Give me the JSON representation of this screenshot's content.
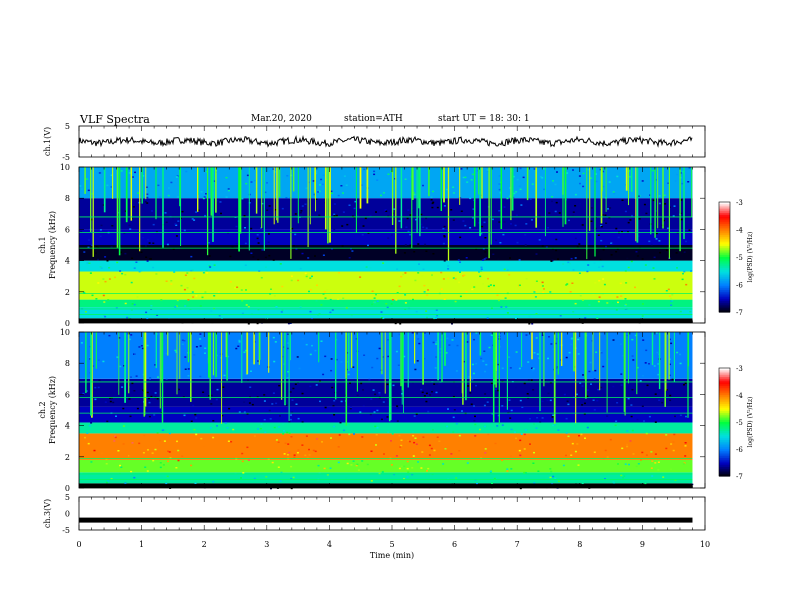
{
  "header": {
    "title": "VLF  Spectra",
    "date": "Mar.20, 2020",
    "station": "station=ATH",
    "start": "start  UT  =    18: 30: 1"
  },
  "chart_data": [
    {
      "type": "line",
      "panel": "ch1-waveform",
      "ylabel": "ch.1(V)",
      "ylim": [
        -5,
        5
      ],
      "yticks": [
        "5",
        "-5"
      ],
      "xlim": [
        0,
        10
      ],
      "note_series_level": 0
    },
    {
      "type": "heatmap",
      "panel": "ch1-spectrogram",
      "ylabel_top": "ch.1",
      "ylabel": "Frequency  (kHz)",
      "ylim": [
        0,
        10
      ],
      "yticks": [
        "0",
        "2",
        "4",
        "6",
        "8",
        "10"
      ],
      "xlim": [
        0,
        9.8
      ],
      "colorbar": {
        "label": "log(PSD) (V²/Hz)",
        "range": [
          -7,
          -3
        ],
        "ticks": [
          "-3",
          "-4",
          "-5",
          "-6",
          "-7"
        ]
      },
      "bands_khz": [
        {
          "from": 0,
          "to": 0.3,
          "level": -7
        },
        {
          "from": 0.3,
          "to": 1.0,
          "level": -5.5
        },
        {
          "from": 1.0,
          "to": 1.5,
          "level": -5.2
        },
        {
          "from": 1.5,
          "to": 3.3,
          "level": -4.6
        },
        {
          "from": 3.3,
          "to": 4.0,
          "level": -5.5
        },
        {
          "from": 4.0,
          "to": 5.0,
          "level": -6.9
        },
        {
          "from": 5.0,
          "to": 6.0,
          "level": -6.5
        },
        {
          "from": 6.0,
          "to": 8.0,
          "level": -6.6
        },
        {
          "from": 8.0,
          "to": 10.0,
          "level": -5.8
        }
      ]
    },
    {
      "type": "heatmap",
      "panel": "ch2-spectrogram",
      "ylabel_top": "ch.2",
      "ylabel": "Frequency  (kHz)",
      "ylim": [
        0,
        10
      ],
      "yticks": [
        "0",
        "2",
        "4",
        "6",
        "8",
        "10"
      ],
      "xlim": [
        0,
        9.8
      ],
      "colorbar": {
        "label": "log(PSD) (V²/Hz)",
        "range": [
          -7,
          -3
        ],
        "ticks": [
          "-3",
          "-4",
          "-5",
          "-6",
          "-7"
        ]
      },
      "bands_khz": [
        {
          "from": 0,
          "to": 0.3,
          "level": -7
        },
        {
          "from": 0.3,
          "to": 1.0,
          "level": -5.3
        },
        {
          "from": 1.0,
          "to": 1.8,
          "level": -4.8
        },
        {
          "from": 1.8,
          "to": 3.5,
          "level": -4.0
        },
        {
          "from": 3.5,
          "to": 4.2,
          "level": -5.3
        },
        {
          "from": 4.2,
          "to": 5.2,
          "level": -6.5
        },
        {
          "from": 5.2,
          "to": 7.0,
          "level": -6.6
        },
        {
          "from": 7.0,
          "to": 10.0,
          "level": -6.0
        }
      ]
    },
    {
      "type": "line",
      "panel": "ch3-waveform",
      "ylabel": "ch.3(V)",
      "ylim": [
        -5,
        5
      ],
      "yticks": [
        "5",
        "0",
        "-5"
      ],
      "xlim": [
        0,
        10
      ],
      "xlabel": "Time  (min)",
      "xticks": [
        "0",
        "1",
        "2",
        "3",
        "4",
        "5",
        "6",
        "7",
        "8",
        "9",
        "10"
      ],
      "constant_value": -2
    }
  ],
  "colors": {
    "scale": [
      "#000000",
      "#0000c0",
      "#0080ff",
      "#00e0e0",
      "#00ff40",
      "#ffff00",
      "#ff8000",
      "#ff0000",
      "#ffffff"
    ]
  }
}
